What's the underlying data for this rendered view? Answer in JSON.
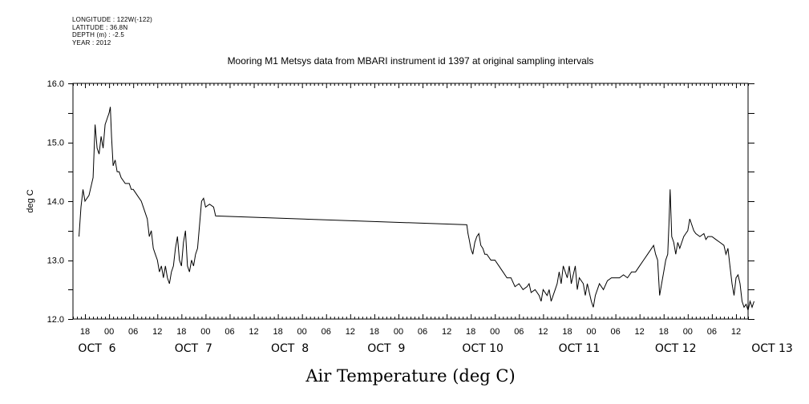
{
  "header": {
    "longitude": "LONGITUDE : 122W(-122)",
    "latitude": "LATITUDE : 36.8N",
    "depth": "DEPTH (m) : -2.5",
    "year": "YEAR : 2012"
  },
  "chart_data": {
    "type": "line",
    "title": "Mooring M1 Metsys data from MBARI instrument id 1397 at original sampling intervals",
    "xlabel": "Air Temperature (deg C)",
    "ylabel": "deg C",
    "ylim": [
      12.0,
      16.0
    ],
    "yticks": [
      "12.0",
      "13.0",
      "14.0",
      "15.0",
      "16.0"
    ],
    "xlim_hours": [
      -9,
      159
    ],
    "hour_tick_labels": [
      {
        "h": -6,
        "label": "18"
      },
      {
        "h": 0,
        "label": "00"
      },
      {
        "h": 6,
        "label": "06"
      },
      {
        "h": 12,
        "label": "12"
      },
      {
        "h": 18,
        "label": "18"
      },
      {
        "h": 24,
        "label": "00"
      },
      {
        "h": 30,
        "label": "06"
      },
      {
        "h": 36,
        "label": "12"
      },
      {
        "h": 42,
        "label": "18"
      },
      {
        "h": 48,
        "label": "00"
      },
      {
        "h": 54,
        "label": "06"
      },
      {
        "h": 60,
        "label": "12"
      },
      {
        "h": 66,
        "label": "18"
      },
      {
        "h": 72,
        "label": "00"
      },
      {
        "h": 78,
        "label": "06"
      },
      {
        "h": 84,
        "label": "12"
      },
      {
        "h": 90,
        "label": "18"
      },
      {
        "h": 96,
        "label": "00"
      },
      {
        "h": 102,
        "label": "06"
      },
      {
        "h": 108,
        "label": "12"
      },
      {
        "h": 114,
        "label": "18"
      },
      {
        "h": 120,
        "label": "00"
      },
      {
        "h": 126,
        "label": "06"
      },
      {
        "h": 132,
        "label": "12"
      },
      {
        "h": 138,
        "label": "18"
      },
      {
        "h": 144,
        "label": "00"
      },
      {
        "h": 150,
        "label": "06"
      },
      {
        "h": 156,
        "label": "12"
      }
    ],
    "date_labels": [
      {
        "h": -9,
        "label": "OCT  6"
      },
      {
        "h": 15,
        "label": "OCT  7"
      },
      {
        "h": 39,
        "label": "OCT  8"
      },
      {
        "h": 63,
        "label": "OCT  9"
      },
      {
        "h": 87,
        "label": "OCT 10"
      },
      {
        "h": 111,
        "label": "OCT 11"
      },
      {
        "h": 135,
        "label": "OCT 12"
      },
      {
        "h": 159,
        "label": "OCT 13"
      }
    ],
    "series": [
      {
        "color": "#000000",
        "points": [
          [
            -7.5,
            13.4
          ],
          [
            -7,
            13.9
          ],
          [
            -6.5,
            14.2
          ],
          [
            -6,
            14.0
          ],
          [
            -5,
            14.1
          ],
          [
            -4,
            14.4
          ],
          [
            -3.5,
            15.3
          ],
          [
            -3,
            14.9
          ],
          [
            -2.5,
            14.8
          ],
          [
            -2,
            15.1
          ],
          [
            -1.5,
            14.9
          ],
          [
            -1,
            15.3
          ],
          [
            -0.5,
            15.4
          ],
          [
            0,
            15.5
          ],
          [
            0.3,
            15.6
          ],
          [
            0.6,
            15.1
          ],
          [
            1,
            14.6
          ],
          [
            1.5,
            14.7
          ],
          [
            2,
            14.5
          ],
          [
            2.5,
            14.5
          ],
          [
            3,
            14.4
          ],
          [
            4,
            14.3
          ],
          [
            5,
            14.3
          ],
          [
            5.5,
            14.2
          ],
          [
            6,
            14.2
          ],
          [
            7,
            14.1
          ],
          [
            8,
            14.0
          ],
          [
            8.5,
            13.9
          ],
          [
            9,
            13.8
          ],
          [
            9.5,
            13.7
          ],
          [
            10,
            13.4
          ],
          [
            10.5,
            13.5
          ],
          [
            11,
            13.2
          ],
          [
            11.5,
            13.1
          ],
          [
            12,
            13.0
          ],
          [
            12.5,
            12.8
          ],
          [
            13,
            12.9
          ],
          [
            13.5,
            12.7
          ],
          [
            14,
            12.9
          ],
          [
            14.5,
            12.7
          ],
          [
            15,
            12.6
          ],
          [
            15.5,
            12.8
          ],
          [
            16,
            12.9
          ],
          [
            16.5,
            13.2
          ],
          [
            17,
            13.4
          ],
          [
            17.5,
            13.0
          ],
          [
            18,
            12.9
          ],
          [
            18.5,
            13.3
          ],
          [
            19,
            13.5
          ],
          [
            19.5,
            12.9
          ],
          [
            20,
            12.8
          ],
          [
            20.5,
            13.0
          ],
          [
            21,
            12.9
          ],
          [
            21.5,
            13.1
          ],
          [
            22,
            13.2
          ],
          [
            22.5,
            13.6
          ],
          [
            23,
            14.0
          ],
          [
            23.5,
            14.05
          ],
          [
            24,
            13.9
          ],
          [
            25,
            13.95
          ],
          [
            26,
            13.9
          ],
          [
            26.5,
            13.75
          ],
          [
            89,
            13.6
          ],
          [
            89.3,
            13.45
          ],
          [
            89.6,
            13.35
          ],
          [
            90,
            13.2
          ],
          [
            90.5,
            13.1
          ],
          [
            91,
            13.3
          ],
          [
            91.5,
            13.4
          ],
          [
            92,
            13.45
          ],
          [
            92.5,
            13.25
          ],
          [
            93,
            13.2
          ],
          [
            93.5,
            13.1
          ],
          [
            94,
            13.1
          ],
          [
            95,
            13.0
          ],
          [
            96,
            13.0
          ],
          [
            97,
            12.9
          ],
          [
            98,
            12.8
          ],
          [
            99,
            12.7
          ],
          [
            100,
            12.7
          ],
          [
            101,
            12.55
          ],
          [
            102,
            12.6
          ],
          [
            103,
            12.5
          ],
          [
            104,
            12.55
          ],
          [
            104.5,
            12.6
          ],
          [
            105,
            12.45
          ],
          [
            106,
            12.5
          ],
          [
            107,
            12.4
          ],
          [
            107.5,
            12.3
          ],
          [
            108,
            12.5
          ],
          [
            109,
            12.4
          ],
          [
            109.5,
            12.5
          ],
          [
            110,
            12.3
          ],
          [
            111,
            12.5
          ],
          [
            111.5,
            12.6
          ],
          [
            112,
            12.8
          ],
          [
            112.5,
            12.6
          ],
          [
            113,
            12.9
          ],
          [
            114,
            12.7
          ],
          [
            114.5,
            12.9
          ],
          [
            115,
            12.6
          ],
          [
            116,
            12.9
          ],
          [
            116.5,
            12.5
          ],
          [
            117,
            12.7
          ],
          [
            118,
            12.6
          ],
          [
            118.5,
            12.4
          ],
          [
            119,
            12.6
          ],
          [
            120,
            12.3
          ],
          [
            120.5,
            12.2
          ],
          [
            121,
            12.4
          ],
          [
            122,
            12.6
          ],
          [
            123,
            12.5
          ],
          [
            124,
            12.65
          ],
          [
            125,
            12.7
          ],
          [
            126,
            12.7
          ],
          [
            127,
            12.7
          ],
          [
            128,
            12.75
          ],
          [
            129,
            12.7
          ],
          [
            130,
            12.8
          ],
          [
            131,
            12.8
          ],
          [
            132,
            12.9
          ],
          [
            133,
            13.0
          ],
          [
            134,
            13.1
          ],
          [
            135,
            13.2
          ],
          [
            135.5,
            13.25
          ],
          [
            136,
            13.1
          ],
          [
            136.5,
            13.0
          ],
          [
            137,
            12.4
          ],
          [
            137.5,
            12.6
          ],
          [
            138,
            12.8
          ],
          [
            138.5,
            13.0
          ],
          [
            139,
            13.1
          ],
          [
            139.3,
            13.6
          ],
          [
            139.6,
            14.2
          ],
          [
            140,
            13.4
          ],
          [
            140.5,
            13.3
          ],
          [
            141,
            13.1
          ],
          [
            141.5,
            13.3
          ],
          [
            142,
            13.2
          ],
          [
            142.5,
            13.3
          ],
          [
            143,
            13.4
          ],
          [
            143.5,
            13.45
          ],
          [
            144,
            13.5
          ],
          [
            144.5,
            13.7
          ],
          [
            145,
            13.6
          ],
          [
            145.5,
            13.5
          ],
          [
            146,
            13.45
          ],
          [
            147,
            13.4
          ],
          [
            148,
            13.45
          ],
          [
            148.5,
            13.35
          ],
          [
            149,
            13.4
          ],
          [
            150,
            13.4
          ],
          [
            151,
            13.35
          ],
          [
            152,
            13.3
          ],
          [
            153,
            13.25
          ],
          [
            153.5,
            13.1
          ],
          [
            154,
            13.2
          ],
          [
            154.5,
            12.9
          ],
          [
            155,
            12.6
          ],
          [
            155.5,
            12.4
          ],
          [
            156,
            12.7
          ],
          [
            156.5,
            12.75
          ],
          [
            157,
            12.6
          ],
          [
            157.5,
            12.3
          ],
          [
            158,
            12.2
          ],
          [
            158.5,
            12.25
          ],
          [
            159,
            12.15
          ],
          [
            159.5,
            12.3
          ],
          [
            160,
            12.2
          ],
          [
            160.5,
            12.3
          ]
        ]
      }
    ],
    "grid": false
  }
}
